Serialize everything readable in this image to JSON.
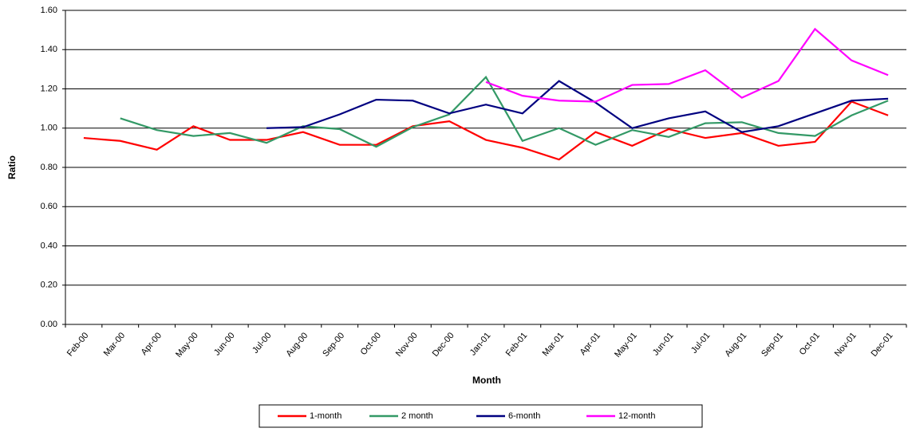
{
  "chart_data": {
    "type": "line",
    "x_label": "Month",
    "y_label": "Ratio",
    "categories": [
      "Feb-00",
      "Mar-00",
      "Apr-00",
      "May-00",
      "Jun-00",
      "Jul-00",
      "Aug-00",
      "Sep-00",
      "Oct-00",
      "Nov-00",
      "Dec-00",
      "Jan-01",
      "Feb-01",
      "Mar-01",
      "Apr-01",
      "May-01",
      "Jun-01",
      "Jul-01",
      "Aug-01",
      "Sep-01",
      "Oct-01",
      "Nov-01",
      "Dec-01"
    ],
    "series": [
      {
        "name": "1-month",
        "color": "#ff0000",
        "values": [
          0.95,
          0.935,
          0.89,
          1.01,
          0.94,
          0.94,
          0.98,
          0.915,
          0.915,
          1.01,
          1.035,
          0.94,
          0.9,
          0.84,
          0.98,
          0.91,
          0.995,
          0.95,
          0.975,
          0.91,
          0.93,
          1.135,
          1.065
        ]
      },
      {
        "name": "2 month",
        "color": "#339966",
        "values": [
          null,
          1.05,
          0.99,
          0.96,
          0.975,
          0.925,
          1.01,
          0.995,
          0.905,
          1.005,
          1.07,
          1.26,
          0.935,
          1.0,
          0.915,
          0.99,
          0.955,
          1.025,
          1.03,
          0.975,
          0.96,
          1.065,
          1.14
        ]
      },
      {
        "name": "6-month",
        "color": "#000080",
        "values": [
          null,
          null,
          null,
          null,
          null,
          1.0,
          1.005,
          1.07,
          1.145,
          1.14,
          1.075,
          1.12,
          1.075,
          1.24,
          1.13,
          1.0,
          1.05,
          1.085,
          0.98,
          1.01,
          1.075,
          1.14,
          1.15
        ]
      },
      {
        "name": "12-month",
        "color": "#ff00ff",
        "values": [
          null,
          null,
          null,
          null,
          null,
          null,
          null,
          null,
          null,
          null,
          null,
          1.235,
          1.165,
          1.14,
          1.135,
          1.22,
          1.225,
          1.295,
          1.155,
          1.24,
          1.505,
          1.345,
          1.27
        ]
      }
    ],
    "ylim": [
      0,
      1.6
    ],
    "yticks": [
      {
        "value": 0,
        "label": "0.00"
      },
      {
        "value": 0.2,
        "label": "0.20"
      },
      {
        "value": 0.4,
        "label": "0.40"
      },
      {
        "value": 0.6,
        "label": "0.60"
      },
      {
        "value": 0.8,
        "label": "0.80"
      },
      {
        "value": 1.0,
        "label": "1.00"
      },
      {
        "value": 1.2,
        "label": "1.20"
      },
      {
        "value": 1.4,
        "label": "1.40"
      },
      {
        "value": 1.6,
        "label": "1.60"
      }
    ],
    "grid": true,
    "legend": "bottom"
  }
}
